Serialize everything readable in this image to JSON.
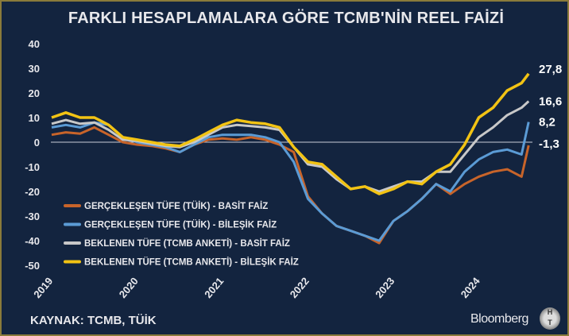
{
  "chart_data": {
    "type": "line",
    "title": "FARKLI HESAPLAMALARA GÖRE TCMB'NİN REEL FAİZİ",
    "xlabel": "",
    "ylabel": "",
    "ylim": [
      -50,
      40
    ],
    "yticks": [
      "40",
      "30",
      "20",
      "10",
      "0",
      "-10",
      "-20",
      "-30",
      "-40",
      "-50"
    ],
    "xticks": [
      "2019",
      "2020",
      "2021",
      "2022",
      "2023",
      "2024"
    ],
    "grid": false,
    "zero_line": true,
    "legend_placement": "bottom-left",
    "x": [
      "2019-01",
      "2019-03",
      "2019-05",
      "2019-07",
      "2019-09",
      "2019-11",
      "2020-01",
      "2020-03",
      "2020-05",
      "2020-07",
      "2020-09",
      "2020-11",
      "2021-01",
      "2021-03",
      "2021-05",
      "2021-07",
      "2021-09",
      "2021-11",
      "2022-01",
      "2022-03",
      "2022-05",
      "2022-07",
      "2022-09",
      "2022-11",
      "2023-01",
      "2023-03",
      "2023-05",
      "2023-07",
      "2023-09",
      "2023-11",
      "2024-01",
      "2024-03",
      "2024-05",
      "2024-07",
      "2024-08"
    ],
    "series": [
      {
        "name": "GERÇEKLEŞEN TÜFE (TÜİK) - BASİT FAİZ",
        "color": "#c8642a",
        "end_label": "-1,3",
        "values": [
          3,
          4,
          3.5,
          6,
          3,
          0,
          -1,
          -1.5,
          -2.5,
          -4,
          -1,
          1,
          1.5,
          1,
          2,
          1,
          -1,
          -4,
          -22,
          -29,
          -34,
          -36,
          -38,
          -41,
          -32,
          -28,
          -23,
          -17,
          -21,
          -17,
          -14,
          -12,
          -11,
          -14,
          -1.3
        ]
      },
      {
        "name": "GERÇEKLEŞEN TÜFE (TÜİK) - BİLEŞİK FAİZ",
        "color": "#5b9bd5",
        "end_label": "8,2",
        "values": [
          6,
          7,
          6,
          8,
          7,
          2,
          0,
          -1,
          -2,
          -4,
          -1,
          2,
          3,
          3,
          3,
          2,
          0,
          -8,
          -23,
          -29,
          -34,
          -36,
          -38,
          -40,
          -32,
          -28,
          -23,
          -17,
          -20,
          -12,
          -7,
          -4,
          -3,
          -5,
          8.2
        ]
      },
      {
        "name": "BEKLENEN TÜFE (TCMB ANKETİ) - BASİT FAİZ",
        "color": "#c8c8c8",
        "end_label": "16,6",
        "values": [
          7.5,
          9,
          7.5,
          8,
          5,
          1,
          0.5,
          -0.5,
          -1.5,
          -2,
          0,
          3,
          6,
          7,
          6.5,
          6,
          5,
          -2,
          -9,
          -10,
          -15,
          -19,
          -18,
          -20,
          -18,
          -16,
          -16,
          -12,
          -12,
          -5,
          2,
          6,
          11,
          14,
          16.6
        ]
      },
      {
        "name": "BEKLENEN TÜFE (TCMB ANKETİ) - BİLEŞİK FAİZ",
        "color": "#f2c314",
        "end_label": "27,8",
        "values": [
          10,
          12,
          10,
          10,
          7,
          2,
          1,
          0,
          -1,
          -1.5,
          1,
          4,
          7,
          9,
          8,
          7.5,
          6,
          -2,
          -8,
          -9,
          -14,
          -19,
          -18,
          -21,
          -19,
          -16,
          -17,
          -12,
          -9,
          -1,
          10,
          14,
          21,
          24,
          27.8
        ]
      }
    ]
  },
  "footer": {
    "source": "KAYNAK: TCMB, TÜİK",
    "brand": "Bloomberg",
    "logo_text": "HT"
  },
  "colors": {
    "background": "#13243f",
    "border": "#8a7a3a",
    "text": "#e8e8ec"
  }
}
